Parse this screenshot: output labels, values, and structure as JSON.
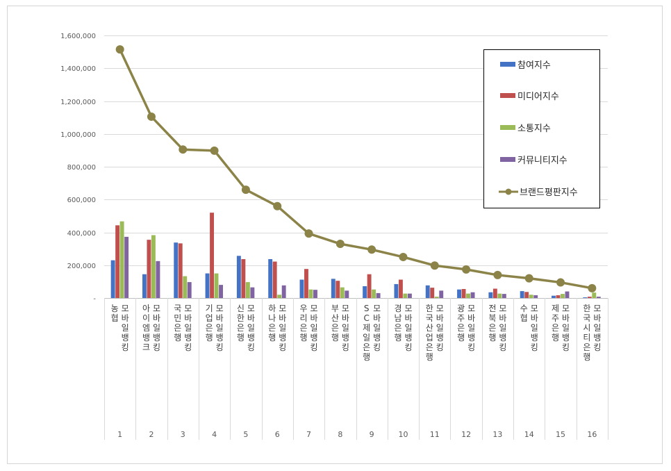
{
  "chart_data": {
    "type": "bar",
    "title": "",
    "xlabel": "",
    "ylabel": "",
    "ylim": [
      0,
      1600000
    ],
    "yticks": [
      0,
      200000,
      400000,
      600000,
      800000,
      1000000,
      1200000,
      1400000,
      1600000
    ],
    "ytick_labels": [
      "-",
      "200,000",
      "400,000",
      "600,000",
      "800,000",
      "1,000,000",
      "1,200,000",
      "1,400,000",
      "1,600,000"
    ],
    "grid": true,
    "legend_position": "top-right",
    "categories": [
      "농협 모바일뱅킹",
      "아이엠뱅크 모바일뱅킹",
      "국민은행 모바일뱅킹",
      "기업은행 모바일뱅킹",
      "신한은행 모바일뱅킹",
      "하나은행 모바일뱅킹",
      "우리은행 모바일뱅킹",
      "부산은행 모바일뱅킹",
      "SC제일은행 모바일뱅킹",
      "경남은행 모바일뱅킹",
      "한국산업은행 모바일뱅킹",
      "광주은행 모바일뱅킹",
      "전북은행 모바일뱅킹",
      "수협 모바일뱅킹",
      "제주은행 모바일뱅킹",
      "한국시티은행 모바일뱅킹"
    ],
    "category_lines": [
      [
        "농협",
        "모바일뱅킹"
      ],
      [
        "아이엠뱅크",
        "모바일뱅킹"
      ],
      [
        "국민은행",
        "모바일뱅킹"
      ],
      [
        "기업은행",
        "모바일뱅킹"
      ],
      [
        "신한은행",
        "모바일뱅킹"
      ],
      [
        "하나은행",
        "모바일뱅킹"
      ],
      [
        "우리은행",
        "모바일뱅킹"
      ],
      [
        "부산은행",
        "모바일뱅킹"
      ],
      [
        "SC제일은행",
        "모바일뱅킹"
      ],
      [
        "경남은행",
        "모바일뱅킹"
      ],
      [
        "한국산업은행",
        "모바일뱅킹"
      ],
      [
        "광주은행",
        "모바일뱅킹"
      ],
      [
        "전북은행",
        "모바일뱅킹"
      ],
      [
        "수협",
        "모바일뱅킹"
      ],
      [
        "제주은행",
        "모바일뱅킹"
      ],
      [
        "한국시티은행",
        "모바일뱅킹"
      ]
    ],
    "ranks": [
      "1",
      "2",
      "3",
      "4",
      "5",
      "6",
      "7",
      "8",
      "9",
      "10",
      "11",
      "12",
      "13",
      "14",
      "15",
      "16"
    ],
    "series": [
      {
        "name": "참여지수",
        "type": "bar",
        "color": "#4472C4",
        "values": [
          230000,
          145000,
          338000,
          150000,
          257000,
          237000,
          112000,
          117000,
          72000,
          85000,
          77000,
          52000,
          35000,
          42000,
          14000,
          4000
        ]
      },
      {
        "name": "미디어지수",
        "type": "bar",
        "color": "#C0504D",
        "values": [
          443000,
          355000,
          333000,
          520000,
          237000,
          222000,
          177000,
          105000,
          145000,
          112000,
          63000,
          55000,
          57000,
          37000,
          17000,
          8000
        ]
      },
      {
        "name": "소통지수",
        "type": "bar",
        "color": "#9BBB59",
        "values": [
          467000,
          383000,
          133000,
          150000,
          97000,
          20000,
          52000,
          65000,
          52000,
          27000,
          8000,
          27000,
          27000,
          20000,
          25000,
          33000
        ]
      },
      {
        "name": "커뮤니티지수",
        "type": "bar",
        "color": "#8064A2",
        "values": [
          373000,
          225000,
          97000,
          80000,
          65000,
          77000,
          50000,
          45000,
          30000,
          27000,
          45000,
          35000,
          25000,
          17000,
          40000,
          8000
        ]
      },
      {
        "name": "브랜드평판지수",
        "type": "line",
        "color": "#8B8347",
        "values": [
          1515000,
          1105000,
          905000,
          898000,
          660000,
          560000,
          393000,
          330000,
          295000,
          250000,
          198000,
          174000,
          140000,
          120000,
          95000,
          60000
        ]
      }
    ]
  }
}
